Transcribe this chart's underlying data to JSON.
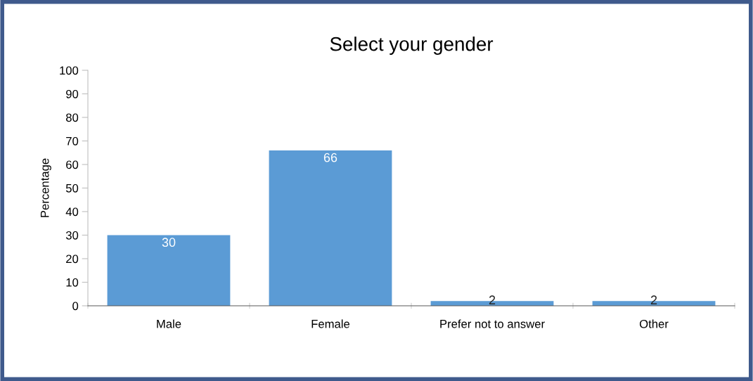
{
  "chart_data": {
    "type": "bar",
    "title": "Select your gender",
    "ylabel": "Percentage",
    "categories": [
      "Male",
      "Female",
      "Prefer not to answer",
      "Other"
    ],
    "values": [
      30,
      66,
      2,
      2
    ],
    "color": "#5b9bd5",
    "ylim": [
      0,
      100
    ],
    "yticks": [
      0,
      10,
      20,
      30,
      40,
      50,
      60,
      70,
      80,
      90,
      100
    ],
    "data_labels": true,
    "grid": false,
    "legend": false
  }
}
